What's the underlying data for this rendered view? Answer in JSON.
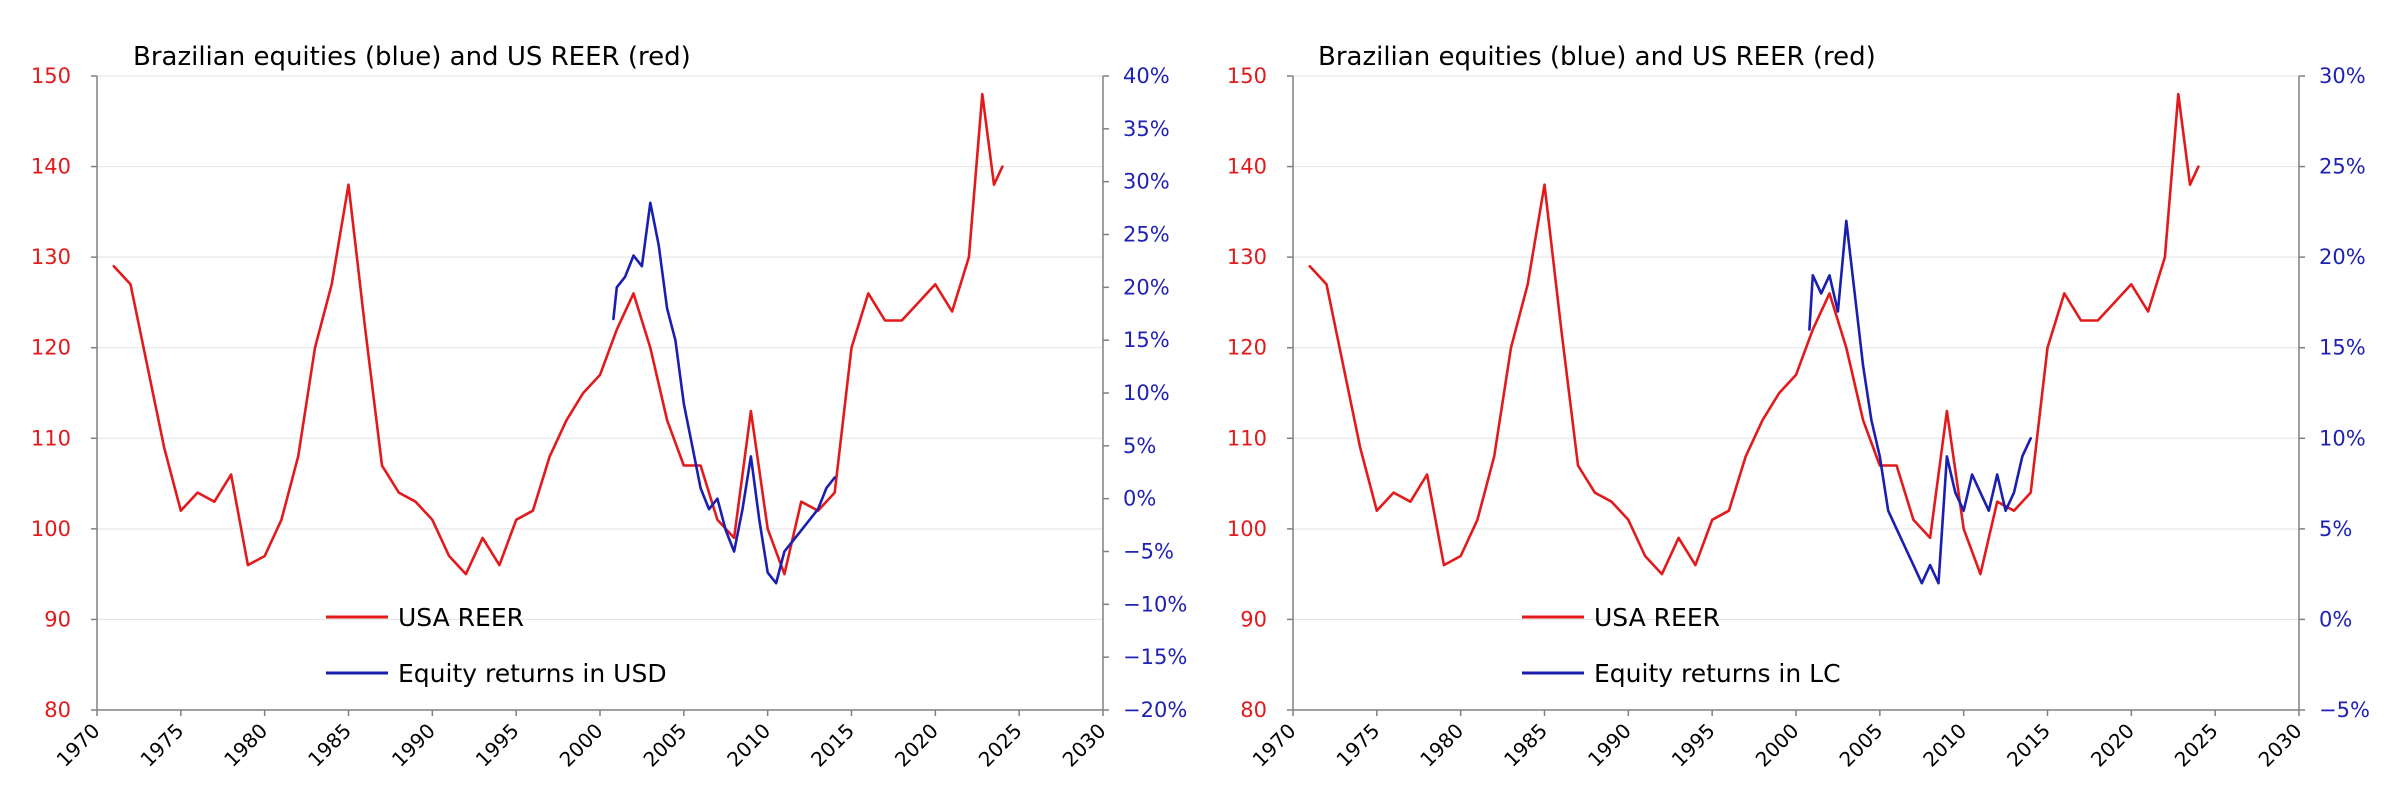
{
  "colors": {
    "reer": "#e31a1c",
    "equity": "#1a1fb0",
    "axis": "#808080",
    "grid": "#e3e3e3"
  },
  "chart_data": [
    {
      "type": "line",
      "title": "Brazilian equities (blue) and US REER (red)",
      "x_ticks": [
        "1970",
        "1975",
        "1980",
        "1985",
        "1990",
        "1995",
        "2000",
        "2005",
        "2010",
        "2015",
        "2020",
        "2025",
        "2030"
      ],
      "xlim": [
        1970,
        2030
      ],
      "y_left": {
        "lim": [
          80,
          150
        ],
        "ticks": [
          "80",
          "90",
          "100",
          "110",
          "120",
          "130",
          "140",
          "150"
        ]
      },
      "y_right": {
        "lim": [
          -20,
          40
        ],
        "ticks": [
          "−20%",
          "−15%",
          "−10%",
          "−5%",
          "0%",
          "5%",
          "10%",
          "15%",
          "20%",
          "25%",
          "30%",
          "35%",
          "40%"
        ]
      },
      "series": [
        {
          "name": "USA REER",
          "axis": "left",
          "x": [
            1971,
            1972,
            1973,
            1974,
            1975,
            1976,
            1977,
            1978,
            1979,
            1980,
            1981,
            1982,
            1983,
            1984,
            1985,
            1986,
            1987,
            1988,
            1989,
            1990,
            1991,
            1992,
            1993,
            1994,
            1995,
            1996,
            1997,
            1998,
            1999,
            2000,
            2001,
            2002,
            2003,
            2004,
            2005,
            2006,
            2007,
            2008,
            2009,
            2010,
            2011,
            2012,
            2013,
            2014,
            2015,
            2016,
            2017,
            2018,
            2019,
            2020,
            2021,
            2022,
            2022.8,
            2023.5,
            2024
          ],
          "y": [
            129,
            127,
            118,
            109,
            102,
            104,
            103,
            106,
            96,
            97,
            101,
            108,
            120,
            127,
            138,
            122,
            107,
            104,
            103,
            101,
            97,
            95,
            99,
            96,
            101,
            102,
            108,
            112,
            115,
            117,
            122,
            126,
            120,
            112,
            107,
            107,
            101,
            99,
            113,
            100,
            95,
            103,
            102,
            104,
            120,
            126,
            123,
            123,
            125,
            127,
            124,
            130,
            148,
            138,
            140
          ]
        },
        {
          "name": "Equity returns in USD",
          "axis": "right",
          "x": [
            2000.8,
            2001,
            2001.5,
            2002,
            2002.5,
            2003,
            2003.5,
            2004,
            2004.5,
            2005,
            2005.5,
            2006,
            2006.5,
            2007,
            2007.5,
            2008,
            2008.5,
            2009,
            2009.5,
            2010,
            2010.5,
            2011,
            2011.5,
            2012,
            2012.5,
            2013,
            2013.5,
            2014
          ],
          "y": [
            17,
            20,
            21,
            23,
            22,
            28,
            24,
            18,
            15,
            9,
            5,
            1,
            -1,
            0,
            -3,
            -5,
            -1,
            4,
            -2,
            -7,
            -8,
            -5,
            -4,
            -3,
            -2,
            -1,
            1,
            2
          ]
        }
      ]
    },
    {
      "type": "line",
      "title": "Brazilian equities (blue) and US REER (red)",
      "x_ticks": [
        "1970",
        "1975",
        "1980",
        "1985",
        "1990",
        "1995",
        "2000",
        "2005",
        "2010",
        "2015",
        "2020",
        "2025",
        "2030"
      ],
      "xlim": [
        1970,
        2030
      ],
      "y_left": {
        "lim": [
          80,
          150
        ],
        "ticks": [
          "80",
          "90",
          "100",
          "110",
          "120",
          "130",
          "140",
          "150"
        ]
      },
      "y_right": {
        "lim": [
          -5,
          30
        ],
        "ticks": [
          "−5%",
          "0%",
          "5%",
          "10%",
          "15%",
          "20%",
          "25%",
          "30%"
        ]
      },
      "series": [
        {
          "name": "USA REER",
          "axis": "left",
          "x": [
            1971,
            1972,
            1973,
            1974,
            1975,
            1976,
            1977,
            1978,
            1979,
            1980,
            1981,
            1982,
            1983,
            1984,
            1985,
            1986,
            1987,
            1988,
            1989,
            1990,
            1991,
            1992,
            1993,
            1994,
            1995,
            1996,
            1997,
            1998,
            1999,
            2000,
            2001,
            2002,
            2003,
            2004,
            2005,
            2006,
            2007,
            2008,
            2009,
            2010,
            2011,
            2012,
            2013,
            2014,
            2015,
            2016,
            2017,
            2018,
            2019,
            2020,
            2021,
            2022,
            2022.8,
            2023.5,
            2024
          ],
          "y": [
            129,
            127,
            118,
            109,
            102,
            104,
            103,
            106,
            96,
            97,
            101,
            108,
            120,
            127,
            138,
            122,
            107,
            104,
            103,
            101,
            97,
            95,
            99,
            96,
            101,
            102,
            108,
            112,
            115,
            117,
            122,
            126,
            120,
            112,
            107,
            107,
            101,
            99,
            113,
            100,
            95,
            103,
            102,
            104,
            120,
            126,
            123,
            123,
            125,
            127,
            124,
            130,
            148,
            138,
            140
          ]
        },
        {
          "name": "Equity returns in LC",
          "axis": "right",
          "x": [
            2000.8,
            2001,
            2001.5,
            2002,
            2002.5,
            2003,
            2003.5,
            2004,
            2004.5,
            2005,
            2005.5,
            2006,
            2006.5,
            2007,
            2007.5,
            2008,
            2008.5,
            2009,
            2009.5,
            2010,
            2010.5,
            2011,
            2011.5,
            2012,
            2012.5,
            2013,
            2013.5,
            2014
          ],
          "y": [
            16,
            19,
            18,
            19,
            17,
            22,
            18,
            14,
            11,
            9,
            6,
            5,
            4,
            3,
            2,
            3,
            2,
            9,
            7,
            6,
            8,
            7,
            6,
            8,
            6,
            7,
            9,
            10
          ]
        }
      ]
    }
  ]
}
